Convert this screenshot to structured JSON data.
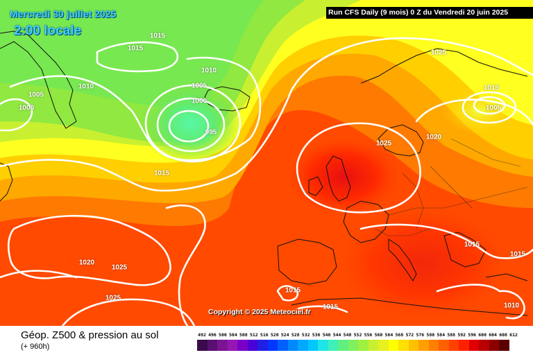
{
  "header": {
    "date": "Mercredi 30 juillet 2025",
    "local_time": "2:00 locale",
    "run_info": "Run CFS Daily (9 mois) 0 Z du Vendredi 20 juin 2025"
  },
  "copyright": "Copyright © 2025 Meteociel.fr",
  "footer": {
    "title": "Géop. Z500 & pression au sol",
    "lead_time": "(+ 960h)"
  },
  "isobar_labels": [
    "1015",
    "1015",
    "1010",
    "1005",
    "1000",
    "1010",
    "1005",
    "1000",
    "995",
    "1015",
    "1025",
    "1025",
    "1015",
    "1005",
    "1020",
    "1025",
    "1015",
    "1015",
    "1020",
    "1025",
    "1015",
    "1015",
    "1025",
    "1010"
  ],
  "legend": {
    "labels": [
      "492",
      "496",
      "500",
      "504",
      "508",
      "512",
      "516",
      "520",
      "524",
      "528",
      "532",
      "536",
      "540",
      "544",
      "548",
      "552",
      "556",
      "560",
      "564",
      "568",
      "572",
      "576",
      "580",
      "584",
      "588",
      "592",
      "596",
      "600",
      "604",
      "608",
      "612"
    ],
    "colors": [
      "#3b0a4d",
      "#5a1070",
      "#7a1493",
      "#9616b3",
      "#7a00c8",
      "#4b00d8",
      "#1f1fe6",
      "#0038ff",
      "#0060ff",
      "#0088ff",
      "#00a8ff",
      "#00c8ff",
      "#1ee6e6",
      "#40f0b8",
      "#60f080",
      "#80f060",
      "#a0f040",
      "#c8f030",
      "#e8f020",
      "#ffff00",
      "#ffe000",
      "#ffc000",
      "#ffa000",
      "#ff8000",
      "#ff6000",
      "#ff4000",
      "#ff2000",
      "#e00000",
      "#b80000",
      "#8c0000",
      "#5a0000"
    ]
  }
}
